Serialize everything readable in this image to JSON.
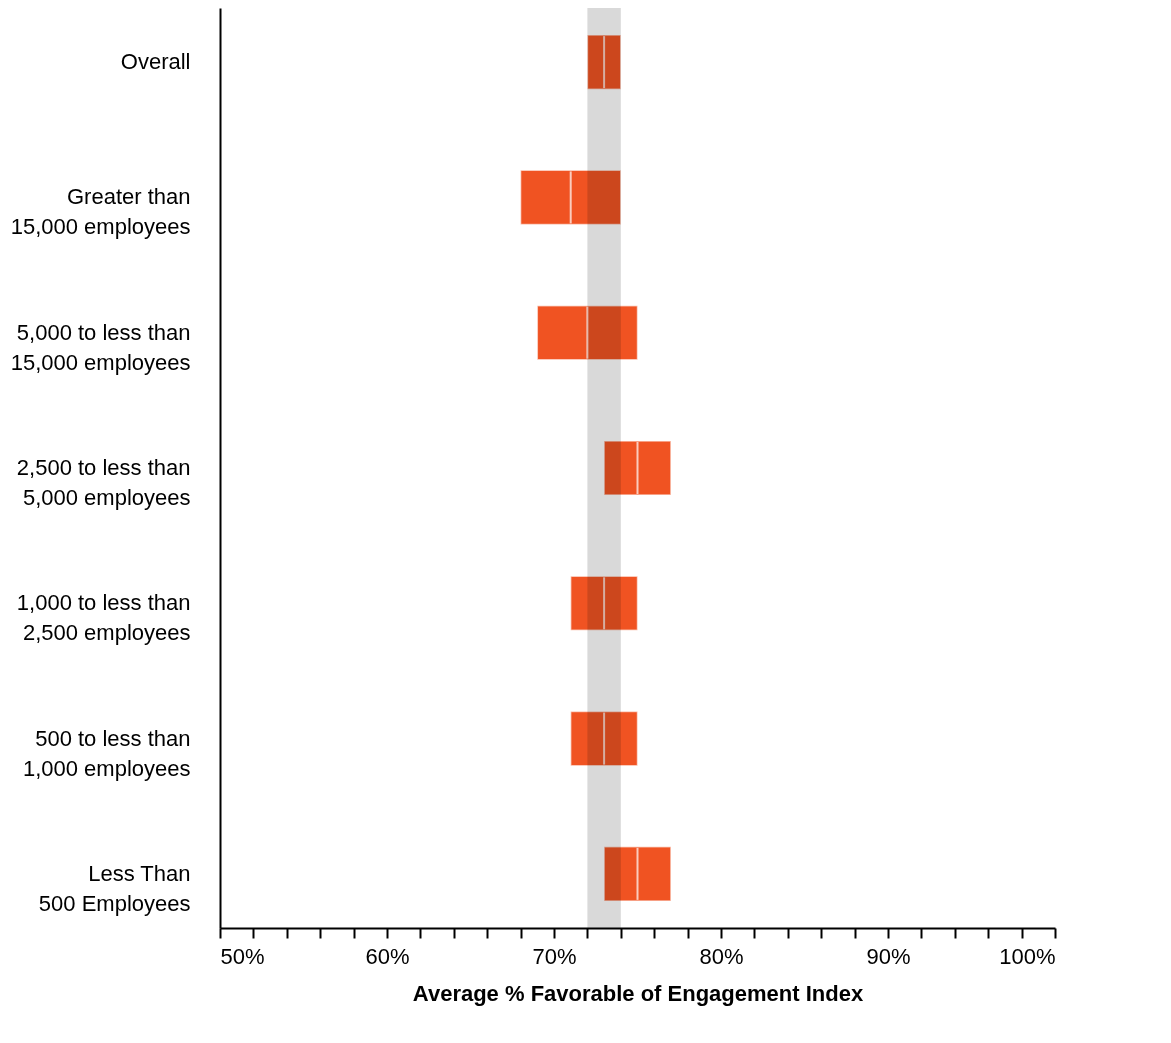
{
  "chart_data": {
    "type": "box",
    "orientation": "horizontal",
    "categories": [
      "Overall",
      "Greater than 15,000 employees",
      "5,000 to less than 15,000 employees",
      "2,500 to less than 5,000 employees",
      "1,000 to less than 2,500 employees",
      "500 to less than 1,000 employees",
      "Less Than 500 Employees"
    ],
    "series": [
      {
        "color": "#f05322",
        "boxes": [
          {
            "low": 72,
            "q1": 72,
            "median": 73,
            "q3": 74,
            "high": 74
          },
          {
            "low": 68,
            "q1": 68,
            "median": 71,
            "q3": 74,
            "high": 74
          },
          {
            "low": 69,
            "q1": 69,
            "median": 72,
            "q3": 75,
            "high": 75
          },
          {
            "low": 73,
            "q1": 73,
            "median": 75,
            "q3": 77,
            "high": 77
          },
          {
            "low": 71,
            "q1": 71,
            "median": 73,
            "q3": 75,
            "high": 75
          },
          {
            "low": 71,
            "q1": 71,
            "median": 73,
            "q3": 75,
            "high": 75
          },
          {
            "low": 73,
            "q1": 73,
            "median": 75,
            "q3": 77,
            "high": 77
          }
        ]
      }
    ],
    "xlabel": "Average % Favorable of Engagement Index",
    "xlim": [
      50,
      100
    ],
    "xticks": [
      {
        "value": 50,
        "label": "50%"
      },
      {
        "value": 52,
        "label": null
      },
      {
        "value": 54,
        "label": null
      },
      {
        "value": 56,
        "label": null
      },
      {
        "value": 58,
        "label": null
      },
      {
        "value": 60,
        "label": "60%"
      },
      {
        "value": 62,
        "label": null
      },
      {
        "value": 64,
        "label": null
      },
      {
        "value": 66,
        "label": null
      },
      {
        "value": 68,
        "label": null
      },
      {
        "value": 70,
        "label": "70%"
      },
      {
        "value": 72,
        "label": null
      },
      {
        "value": 74,
        "label": null
      },
      {
        "value": 76,
        "label": null
      },
      {
        "value": 78,
        "label": null
      },
      {
        "value": 80,
        "label": "80%"
      },
      {
        "value": 82,
        "label": null
      },
      {
        "value": 84,
        "label": null
      },
      {
        "value": 86,
        "label": null
      },
      {
        "value": 88,
        "label": null
      },
      {
        "value": 90,
        "label": "90%"
      },
      {
        "value": 92,
        "label": null
      },
      {
        "value": 94,
        "label": null
      },
      {
        "value": 96,
        "label": null
      },
      {
        "value": 98,
        "label": null
      },
      {
        "value": 100,
        "label": "100%"
      }
    ],
    "bands": [
      {
        "axis": "x",
        "from": 72,
        "to": 74,
        "color": "#d9d9d9"
      }
    ]
  }
}
